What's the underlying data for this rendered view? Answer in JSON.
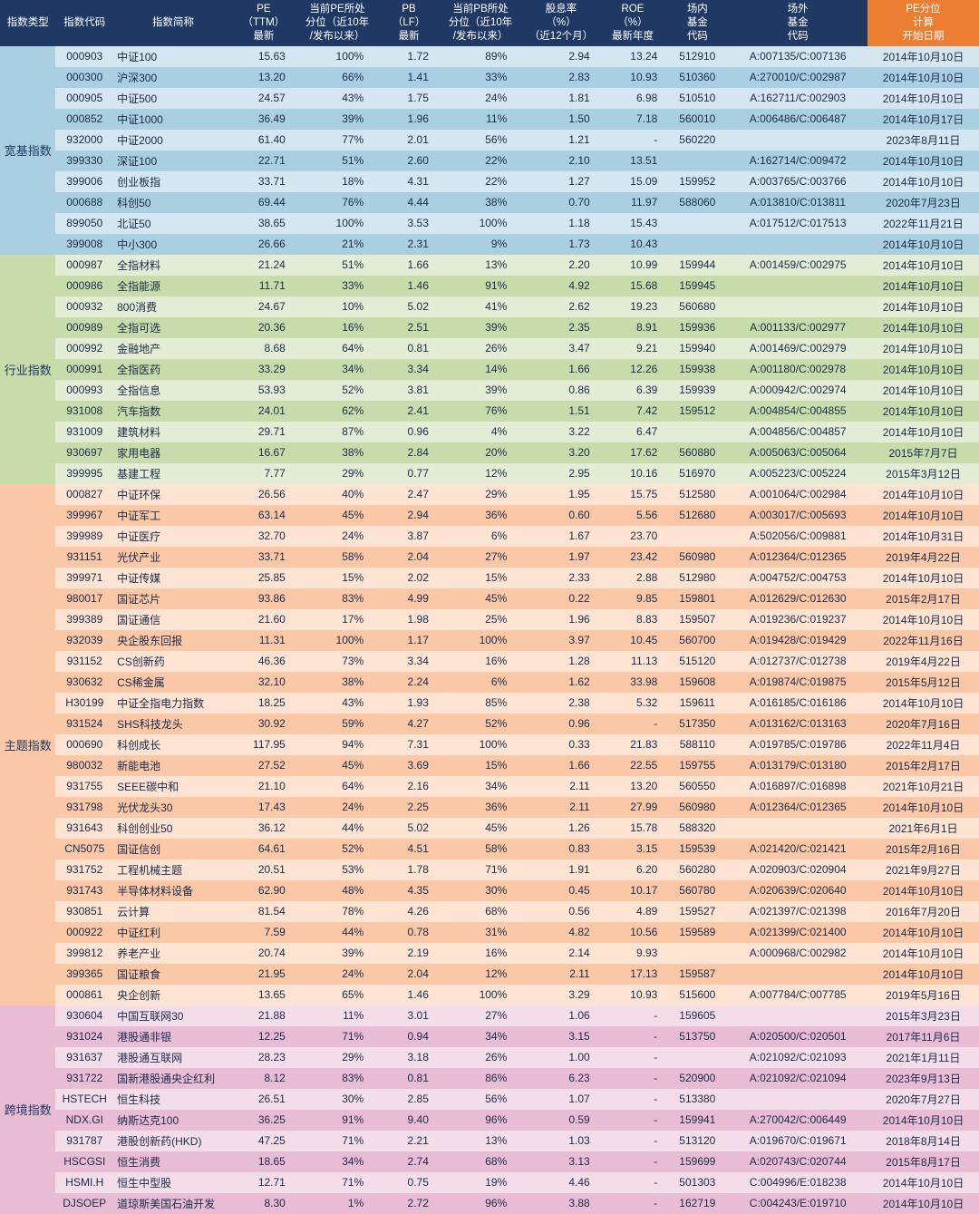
{
  "headers": {
    "cat": "指数类型",
    "code": "指数代码",
    "name": "指数简称",
    "pe": "PE\n（TTM）\n最新",
    "pe_pct": "当前PE所处\n分位（近10年\n/发布以来）",
    "pb": "PB\n（LF）\n最新",
    "pb_pct": "当前PB所处\n分位（近10年\n/发布以来）",
    "div": "股息率\n（%）\n（近12个月）",
    "roe": "ROE\n（%）\n最新年度",
    "fund_in": "场内\n基金\n代码",
    "fund_out": "场外\n基金\n代码",
    "date": "PE分位\n计算\n开始日期"
  },
  "group_colors": {
    "broad_odd": "#d4e6ef",
    "broad_even": "#a9cfe0",
    "sector_odd": "#e3edd5",
    "sector_even": "#c8dcab",
    "theme_odd": "#fde3d2",
    "theme_even": "#fac8a6",
    "cross_odd": "#f3dde9",
    "cross_even": "#e8bcd4"
  },
  "groups": [
    {
      "name": "宽基指数",
      "color_odd": "#d4e6ef",
      "color_even": "#a9cfe0",
      "rows": [
        {
          "code": "000903",
          "name": "中证100",
          "pe": "15.63",
          "pep": "100%",
          "pb": "1.72",
          "pbp": "89%",
          "div": "2.94",
          "roe": "13.24",
          "fin": "512910",
          "fout": "A:007135/C:007136",
          "date": "2014年10月10日"
        },
        {
          "code": "000300",
          "name": "沪深300",
          "pe": "13.20",
          "pep": "66%",
          "pb": "1.41",
          "pbp": "33%",
          "div": "2.83",
          "roe": "10.93",
          "fin": "510360",
          "fout": "A:270010/C:002987",
          "date": "2014年10月10日"
        },
        {
          "code": "000905",
          "name": "中证500",
          "pe": "24.57",
          "pep": "43%",
          "pb": "1.75",
          "pbp": "24%",
          "div": "1.81",
          "roe": "6.98",
          "fin": "510510",
          "fout": "A:162711/C:002903",
          "date": "2014年10月10日"
        },
        {
          "code": "000852",
          "name": "中证1000",
          "pe": "36.49",
          "pep": "39%",
          "pb": "1.96",
          "pbp": "11%",
          "div": "1.50",
          "roe": "7.18",
          "fin": "560010",
          "fout": "A:006486/C:006487",
          "date": "2014年10月17日"
        },
        {
          "code": "932000",
          "name": "中证2000",
          "pe": "61.40",
          "pep": "77%",
          "pb": "2.01",
          "pbp": "56%",
          "div": "1.21",
          "roe": "-",
          "fin": "560220",
          "fout": "",
          "date": "2023年8月11日"
        },
        {
          "code": "399330",
          "name": "深证100",
          "pe": "22.71",
          "pep": "51%",
          "pb": "2.60",
          "pbp": "22%",
          "div": "2.10",
          "roe": "13.51",
          "fin": "",
          "fout": "A:162714/C:009472",
          "date": "2014年10月10日"
        },
        {
          "code": "399006",
          "name": "创业板指",
          "pe": "33.71",
          "pep": "18%",
          "pb": "4.31",
          "pbp": "22%",
          "div": "1.27",
          "roe": "15.09",
          "fin": "159952",
          "fout": "A:003765/C:003766",
          "date": "2014年10月10日"
        },
        {
          "code": "000688",
          "name": "科创50",
          "pe": "69.44",
          "pep": "76%",
          "pb": "4.44",
          "pbp": "38%",
          "div": "0.70",
          "roe": "11.97",
          "fin": "588060",
          "fout": "A:013810/C:013811",
          "date": "2020年7月23日"
        },
        {
          "code": "899050",
          "name": "北证50",
          "pe": "38.65",
          "pep": "100%",
          "pb": "3.53",
          "pbp": "100%",
          "div": "1.18",
          "roe": "15.43",
          "fin": "",
          "fout": "A:017512/C:017513",
          "date": "2022年11月21日"
        },
        {
          "code": "399008",
          "name": "中小300",
          "pe": "26.66",
          "pep": "21%",
          "pb": "2.31",
          "pbp": "9%",
          "div": "1.73",
          "roe": "10.43",
          "fin": "",
          "fout": "",
          "date": "2014年10月10日"
        }
      ]
    },
    {
      "name": "行业指数",
      "color_odd": "#e3edd5",
      "color_even": "#c8dcab",
      "rows": [
        {
          "code": "000987",
          "name": "全指材料",
          "pe": "21.24",
          "pep": "51%",
          "pb": "1.66",
          "pbp": "13%",
          "div": "2.20",
          "roe": "10.99",
          "fin": "159944",
          "fout": "A:001459/C:002975",
          "date": "2014年10月10日"
        },
        {
          "code": "000986",
          "name": "全指能源",
          "pe": "11.71",
          "pep": "33%",
          "pb": "1.46",
          "pbp": "91%",
          "div": "4.92",
          "roe": "15.68",
          "fin": "159945",
          "fout": "",
          "date": "2014年10月10日"
        },
        {
          "code": "000932",
          "name": "800消费",
          "pe": "24.67",
          "pep": "10%",
          "pb": "5.02",
          "pbp": "41%",
          "div": "2.62",
          "roe": "19.23",
          "fin": "560680",
          "fout": "",
          "date": "2014年10月10日"
        },
        {
          "code": "000989",
          "name": "全指可选",
          "pe": "20.36",
          "pep": "16%",
          "pb": "2.51",
          "pbp": "39%",
          "div": "2.35",
          "roe": "8.91",
          "fin": "159936",
          "fout": "A:001133/C:002977",
          "date": "2014年10月10日"
        },
        {
          "code": "000992",
          "name": "金融地产",
          "pe": "8.68",
          "pep": "64%",
          "pb": "0.81",
          "pbp": "26%",
          "div": "3.47",
          "roe": "9.21",
          "fin": "159940",
          "fout": "A:001469/C:002979",
          "date": "2014年10月10日"
        },
        {
          "code": "000991",
          "name": "全指医药",
          "pe": "33.29",
          "pep": "34%",
          "pb": "3.34",
          "pbp": "14%",
          "div": "1.66",
          "roe": "12.26",
          "fin": "159938",
          "fout": "A:001180/C:002978",
          "date": "2014年10月10日"
        },
        {
          "code": "000993",
          "name": "全指信息",
          "pe": "53.93",
          "pep": "52%",
          "pb": "3.81",
          "pbp": "39%",
          "div": "0.86",
          "roe": "6.39",
          "fin": "159939",
          "fout": "A:000942/C:002974",
          "date": "2014年10月10日"
        },
        {
          "code": "931008",
          "name": "汽车指数",
          "pe": "24.01",
          "pep": "62%",
          "pb": "2.41",
          "pbp": "76%",
          "div": "1.51",
          "roe": "7.42",
          "fin": "159512",
          "fout": "A:004854/C:004855",
          "date": "2014年10月10日"
        },
        {
          "code": "931009",
          "name": "建筑材料",
          "pe": "29.71",
          "pep": "87%",
          "pb": "0.96",
          "pbp": "4%",
          "div": "3.22",
          "roe": "6.47",
          "fin": "",
          "fout": "A:004856/C:004857",
          "date": "2014年10月10日"
        },
        {
          "code": "930697",
          "name": "家用电器",
          "pe": "16.67",
          "pep": "38%",
          "pb": "2.84",
          "pbp": "20%",
          "div": "3.20",
          "roe": "17.62",
          "fin": "560880",
          "fout": "A:005063/C:005064",
          "date": "2015年7月7日"
        },
        {
          "code": "399995",
          "name": "基建工程",
          "pe": "7.77",
          "pep": "29%",
          "pb": "0.77",
          "pbp": "12%",
          "div": "2.95",
          "roe": "10.16",
          "fin": "516970",
          "fout": "A:005223/C:005224",
          "date": "2015年3月12日"
        }
      ]
    },
    {
      "name": "主题指数",
      "color_odd": "#fde3d2",
      "color_even": "#fac8a6",
      "rows": [
        {
          "code": "000827",
          "name": "中证环保",
          "pe": "26.56",
          "pep": "40%",
          "pb": "2.47",
          "pbp": "29%",
          "div": "1.95",
          "roe": "15.75",
          "fin": "512580",
          "fout": "A:001064/C:002984",
          "date": "2014年10月10日"
        },
        {
          "code": "399967",
          "name": "中证军工",
          "pe": "63.14",
          "pep": "45%",
          "pb": "2.94",
          "pbp": "36%",
          "div": "0.60",
          "roe": "5.56",
          "fin": "512680",
          "fout": "A:003017/C:005693",
          "date": "2014年10月10日"
        },
        {
          "code": "399989",
          "name": "中证医疗",
          "pe": "32.70",
          "pep": "24%",
          "pb": "3.87",
          "pbp": "6%",
          "div": "1.67",
          "roe": "23.70",
          "fin": "",
          "fout": "A:502056/C:009881",
          "date": "2014年10月31日"
        },
        {
          "code": "931151",
          "name": "光伏产业",
          "pe": "33.71",
          "pep": "58%",
          "pb": "2.04",
          "pbp": "27%",
          "div": "1.97",
          "roe": "23.42",
          "fin": "560980",
          "fout": "A:012364/C:012365",
          "date": "2019年4月22日"
        },
        {
          "code": "399971",
          "name": "中证传媒",
          "pe": "25.85",
          "pep": "15%",
          "pb": "2.02",
          "pbp": "15%",
          "div": "2.33",
          "roe": "2.88",
          "fin": "512980",
          "fout": "A:004752/C:004753",
          "date": "2014年10月10日"
        },
        {
          "code": "980017",
          "name": "国证芯片",
          "pe": "93.86",
          "pep": "83%",
          "pb": "4.99",
          "pbp": "45%",
          "div": "0.22",
          "roe": "9.85",
          "fin": "159801",
          "fout": "A:012629/C:012630",
          "date": "2015年2月17日"
        },
        {
          "code": "399389",
          "name": "国证通信",
          "pe": "21.60",
          "pep": "17%",
          "pb": "1.98",
          "pbp": "25%",
          "div": "1.96",
          "roe": "8.83",
          "fin": "159507",
          "fout": "A:019236/C:019237",
          "date": "2014年10月10日"
        },
        {
          "code": "932039",
          "name": "央企股东回报",
          "pe": "11.31",
          "pep": "100%",
          "pb": "1.17",
          "pbp": "100%",
          "div": "3.97",
          "roe": "10.45",
          "fin": "560700",
          "fout": "A:019428/C:019429",
          "date": "2022年11月16日"
        },
        {
          "code": "931152",
          "name": "CS创新药",
          "pe": "46.36",
          "pep": "73%",
          "pb": "3.34",
          "pbp": "16%",
          "div": "1.28",
          "roe": "11.13",
          "fin": "515120",
          "fout": "A:012737/C:012738",
          "date": "2019年4月22日"
        },
        {
          "code": "930632",
          "name": "CS稀金属",
          "pe": "32.10",
          "pep": "38%",
          "pb": "2.24",
          "pbp": "6%",
          "div": "1.62",
          "roe": "33.98",
          "fin": "159608",
          "fout": "A:019874/C:019875",
          "date": "2015年5月12日"
        },
        {
          "code": "H30199",
          "name": "中证全指电力指数",
          "pe": "18.25",
          "pep": "43%",
          "pb": "1.93",
          "pbp": "85%",
          "div": "2.38",
          "roe": "5.32",
          "fin": "159611",
          "fout": "A:016185/C:016186",
          "date": "2014年10月10日"
        },
        {
          "code": "931524",
          "name": "SHS科技龙头",
          "pe": "30.92",
          "pep": "59%",
          "pb": "4.27",
          "pbp": "52%",
          "div": "0.96",
          "roe": "-",
          "fin": "517350",
          "fout": "A:013162/C:013163",
          "date": "2020年7月16日"
        },
        {
          "code": "000690",
          "name": "科创成长",
          "pe": "117.95",
          "pep": "94%",
          "pb": "7.31",
          "pbp": "100%",
          "div": "0.33",
          "roe": "21.83",
          "fin": "588110",
          "fout": "A:019785/C:019786",
          "date": "2022年11月4日"
        },
        {
          "code": "980032",
          "name": "新能电池",
          "pe": "27.52",
          "pep": "45%",
          "pb": "3.69",
          "pbp": "15%",
          "div": "1.66",
          "roe": "22.55",
          "fin": "159755",
          "fout": "A:013179/C:013180",
          "date": "2015年2月17日"
        },
        {
          "code": "931755",
          "name": "SEEE碳中和",
          "pe": "21.10",
          "pep": "64%",
          "pb": "2.16",
          "pbp": "34%",
          "div": "2.11",
          "roe": "13.20",
          "fin": "560550",
          "fout": "A:016897/C:016898",
          "date": "2021年10月21日"
        },
        {
          "code": "931798",
          "name": "光伏龙头30",
          "pe": "17.43",
          "pep": "24%",
          "pb": "2.25",
          "pbp": "36%",
          "div": "2.11",
          "roe": "27.99",
          "fin": "560980",
          "fout": "A:012364/C:012365",
          "date": "2014年10月10日"
        },
        {
          "code": "931643",
          "name": "科创创业50",
          "pe": "36.12",
          "pep": "44%",
          "pb": "5.02",
          "pbp": "45%",
          "div": "1.26",
          "roe": "15.78",
          "fin": "588320",
          "fout": "",
          "date": "2021年6月1日"
        },
        {
          "code": "CN5075",
          "name": "国证信创",
          "pe": "64.61",
          "pep": "52%",
          "pb": "4.51",
          "pbp": "58%",
          "div": "0.83",
          "roe": "3.15",
          "fin": "159539",
          "fout": "A:021420/C:021421",
          "date": "2015年2月16日"
        },
        {
          "code": "931752",
          "name": "工程机械主题",
          "pe": "20.51",
          "pep": "53%",
          "pb": "1.78",
          "pbp": "71%",
          "div": "1.91",
          "roe": "6.20",
          "fin": "560280",
          "fout": "A:020903/C:020904",
          "date": "2021年9月27日"
        },
        {
          "code": "931743",
          "name": "半导体材料设备",
          "pe": "62.90",
          "pep": "48%",
          "pb": "4.35",
          "pbp": "30%",
          "div": "0.45",
          "roe": "10.17",
          "fin": "560780",
          "fout": "A:020639/C:020640",
          "date": "2014年10月10日"
        },
        {
          "code": "930851",
          "name": "云计算",
          "pe": "81.54",
          "pep": "78%",
          "pb": "4.26",
          "pbp": "68%",
          "div": "0.56",
          "roe": "4.89",
          "fin": "159527",
          "fout": "A:021397/C:021398",
          "date": "2016年7月20日"
        },
        {
          "code": "000922",
          "name": "中证红利",
          "pe": "7.59",
          "pep": "44%",
          "pb": "0.78",
          "pbp": "31%",
          "div": "4.82",
          "roe": "10.56",
          "fin": "159589",
          "fout": "A:021399/C:021400",
          "date": "2014年10月10日"
        },
        {
          "code": "399812",
          "name": "养老产业",
          "pe": "20.74",
          "pep": "39%",
          "pb": "2.19",
          "pbp": "16%",
          "div": "2.14",
          "roe": "9.93",
          "fin": "",
          "fout": "A:000968/C:002982",
          "date": "2014年10月10日"
        },
        {
          "code": "399365",
          "name": "国证粮食",
          "pe": "21.95",
          "pep": "24%",
          "pb": "2.04",
          "pbp": "12%",
          "div": "2.11",
          "roe": "17.13",
          "fin": "159587",
          "fout": "",
          "date": "2014年10月10日"
        },
        {
          "code": "000861",
          "name": "央企创新",
          "pe": "13.65",
          "pep": "65%",
          "pb": "1.46",
          "pbp": "100%",
          "div": "3.29",
          "roe": "10.93",
          "fin": "515600",
          "fout": "A:007784/C:007785",
          "date": "2019年5月16日"
        }
      ]
    },
    {
      "name": "跨境指数",
      "color_odd": "#f3dde9",
      "color_even": "#e8bcd4",
      "rows": [
        {
          "code": "930604",
          "name": "中国互联网30",
          "pe": "21.88",
          "pep": "11%",
          "pb": "3.01",
          "pbp": "27%",
          "div": "1.06",
          "roe": "-",
          "fin": "159605",
          "fout": "",
          "date": "2015年3月23日"
        },
        {
          "code": "931024",
          "name": "港股通非银",
          "pe": "12.25",
          "pep": "71%",
          "pb": "0.94",
          "pbp": "34%",
          "div": "3.15",
          "roe": "-",
          "fin": "513750",
          "fout": "A:020500/C:020501",
          "date": "2017年11月6日"
        },
        {
          "code": "931637",
          "name": "港股通互联网",
          "pe": "28.23",
          "pep": "29%",
          "pb": "3.18",
          "pbp": "26%",
          "div": "1.00",
          "roe": "-",
          "fin": "",
          "fout": "A:021092/C:021093",
          "date": "2021年1月11日"
        },
        {
          "code": "931722",
          "name": "国新港股通央企红利",
          "pe": "8.12",
          "pep": "83%",
          "pb": "0.81",
          "pbp": "86%",
          "div": "6.23",
          "roe": "-",
          "fin": "520900",
          "fout": "A:021092/C:021094",
          "date": "2023年9月13日"
        },
        {
          "code": "HSTECH",
          "name": "恒生科技",
          "pe": "26.51",
          "pep": "30%",
          "pb": "2.85",
          "pbp": "56%",
          "div": "1.07",
          "roe": "-",
          "fin": "513380",
          "fout": "",
          "date": "2020年7月27日"
        },
        {
          "code": "NDX.GI",
          "name": "纳斯达克100",
          "pe": "36.25",
          "pep": "91%",
          "pb": "9.40",
          "pbp": "96%",
          "div": "0.59",
          "roe": "-",
          "fin": "159941",
          "fout": "A:270042/C:006449",
          "date": "2014年10月10日"
        },
        {
          "code": "931787",
          "name": "港股创新药(HKD)",
          "pe": "47.25",
          "pep": "71%",
          "pb": "2.21",
          "pbp": "13%",
          "div": "1.03",
          "roe": "-",
          "fin": "513120",
          "fout": "A:019670/C:019671",
          "date": "2018年8月14日"
        },
        {
          "code": "HSCGSI",
          "name": "恒生消费",
          "pe": "18.65",
          "pep": "34%",
          "pb": "2.74",
          "pbp": "68%",
          "div": "3.13",
          "roe": "-",
          "fin": "159699",
          "fout": "A:020743/C:020744",
          "date": "2015年8月17日"
        },
        {
          "code": "HSMI.H",
          "name": "恒生中型股",
          "pe": "12.71",
          "pep": "71%",
          "pb": "0.75",
          "pbp": "19%",
          "div": "4.46",
          "roe": "-",
          "fin": "501303",
          "fout": "C:004996/E:018238",
          "date": "2014年10月10日"
        },
        {
          "code": "DJSOEP",
          "name": "道琼斯美国石油开发",
          "pe": "8.30",
          "pep": "1%",
          "pb": "2.72",
          "pbp": "96%",
          "div": "3.88",
          "roe": "-",
          "fin": "162719",
          "fout": "C:004243/E:019710",
          "date": "2014年10月10日"
        }
      ]
    }
  ]
}
